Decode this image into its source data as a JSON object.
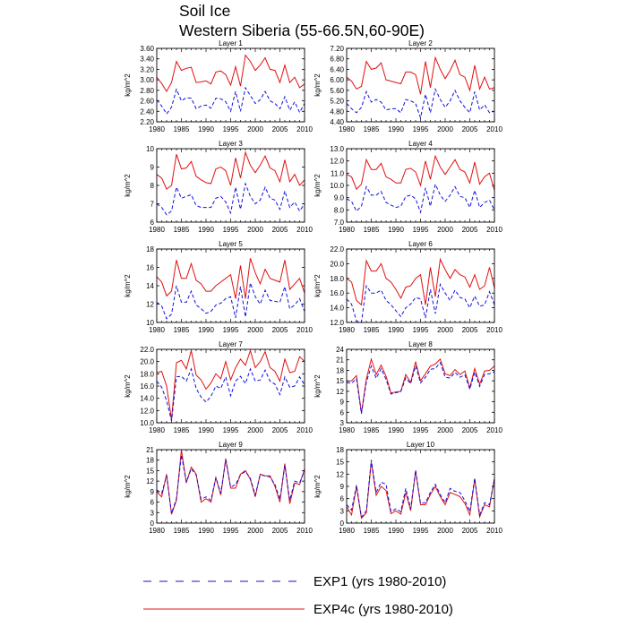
{
  "title_line1": "Soil Ice",
  "title_line2": "Western Siberia (55-66.5N,60-90E)",
  "chart_data": {
    "type": "line",
    "years": [
      1980,
      1981,
      1982,
      1983,
      1984,
      1985,
      1986,
      1987,
      1988,
      1989,
      1990,
      1991,
      1992,
      1993,
      1994,
      1995,
      1996,
      1997,
      1998,
      1999,
      2000,
      2001,
      2002,
      2003,
      2004,
      2005,
      2006,
      2007,
      2008,
      2009,
      2010
    ],
    "xlim": [
      1980,
      2010
    ],
    "xticks": [
      1980,
      1985,
      1990,
      1995,
      2000,
      2005,
      2010
    ],
    "ylabel": "kg/m^2",
    "colors": {
      "exp1": "#1010e0",
      "exp4c": "#e01010"
    },
    "legend": [
      {
        "key": "exp1",
        "label": "EXP1 (yrs 1980-2010)",
        "style": "dashed"
      },
      {
        "key": "exp4c",
        "label": "EXP4c (yrs 1980-2010)",
        "style": "solid"
      }
    ],
    "panels": [
      {
        "title": "Layer 1",
        "ylim": [
          2.2,
          3.6
        ],
        "yticks": [
          2.2,
          2.4,
          2.6,
          2.8,
          3.0,
          3.2,
          3.4,
          3.6
        ],
        "decimals": 2,
        "series": [
          {
            "name": "EXP4c",
            "values": [
              3.05,
              2.93,
              2.78,
              2.95,
              3.35,
              3.18,
              3.22,
              3.24,
              2.95,
              2.96,
              2.98,
              2.92,
              3.15,
              3.17,
              3.1,
              2.9,
              3.25,
              2.88,
              3.47,
              3.35,
              3.18,
              3.28,
              3.42,
              3.2,
              3.18,
              2.95,
              3.28,
              2.95,
              3.05,
              2.85,
              2.92
            ]
          },
          {
            "name": "EXP1",
            "values": [
              2.62,
              2.5,
              2.35,
              2.48,
              2.82,
              2.6,
              2.66,
              2.65,
              2.45,
              2.5,
              2.52,
              2.46,
              2.65,
              2.64,
              2.58,
              2.4,
              2.78,
              2.4,
              2.85,
              2.7,
              2.55,
              2.62,
              2.78,
              2.6,
              2.55,
              2.45,
              2.68,
              2.42,
              2.58,
              2.38,
              2.55
            ]
          }
        ]
      },
      {
        "title": "Layer 2",
        "ylim": [
          4.4,
          7.2
        ],
        "yticks": [
          4.4,
          4.8,
          5.2,
          5.6,
          6.0,
          6.4,
          6.8,
          7.2
        ],
        "decimals": 2,
        "series": [
          {
            "name": "EXP4c",
            "values": [
              6.1,
              5.95,
              5.65,
              5.75,
              6.7,
              6.4,
              6.45,
              6.65,
              6.0,
              5.95,
              5.9,
              5.85,
              6.3,
              6.3,
              6.2,
              5.45,
              6.7,
              5.7,
              6.85,
              6.4,
              6.05,
              6.35,
              6.75,
              6.2,
              6.1,
              5.6,
              6.55,
              5.65,
              6.1,
              5.65,
              5.7
            ]
          },
          {
            "name": "EXP1",
            "values": [
              5.1,
              4.9,
              4.75,
              4.95,
              5.55,
              5.15,
              5.25,
              5.15,
              4.85,
              4.9,
              4.9,
              4.75,
              5.25,
              5.2,
              5.1,
              4.55,
              5.45,
              4.75,
              5.65,
              5.25,
              4.95,
              5.2,
              5.6,
              5.2,
              4.95,
              4.75,
              5.55,
              4.85,
              5.05,
              4.75,
              4.8
            ]
          }
        ]
      },
      {
        "title": "Layer 3",
        "ylim": [
          6,
          10
        ],
        "yticks": [
          6,
          7,
          8,
          9,
          10
        ],
        "decimals": 0,
        "series": [
          {
            "name": "EXP4c",
            "values": [
              8.6,
              8.4,
              7.8,
              8.0,
              9.7,
              8.9,
              8.95,
              9.3,
              8.5,
              8.3,
              8.15,
              8.1,
              8.9,
              9.0,
              8.8,
              8.0,
              9.5,
              8.4,
              9.8,
              9.1,
              8.7,
              9.1,
              9.6,
              8.95,
              8.8,
              8.2,
              9.4,
              8.2,
              8.6,
              8.0,
              8.3
            ]
          },
          {
            "name": "EXP1",
            "values": [
              7.0,
              6.8,
              6.4,
              6.6,
              7.9,
              7.3,
              7.4,
              7.5,
              6.9,
              6.8,
              6.8,
              6.8,
              7.3,
              7.4,
              7.1,
              6.5,
              7.9,
              6.7,
              8.1,
              7.4,
              7.0,
              7.2,
              7.9,
              7.3,
              7.2,
              6.7,
              7.7,
              6.8,
              7.1,
              6.6,
              7.0
            ]
          }
        ]
      },
      {
        "title": "Layer 4",
        "ylim": [
          7,
          13
        ],
        "yticks": [
          7,
          8,
          9,
          10,
          11,
          12,
          13
        ],
        "decimals": 1,
        "series": [
          {
            "name": "EXP4c",
            "values": [
              10.9,
              10.7,
              9.7,
              10.1,
              12.1,
              11.3,
              11.3,
              11.8,
              10.7,
              10.5,
              10.2,
              10.2,
              11.3,
              11.4,
              11.1,
              10.0,
              12.0,
              10.5,
              12.4,
              11.5,
              10.9,
              11.5,
              12.1,
              11.3,
              11.1,
              10.2,
              11.9,
              10.1,
              10.7,
              11.0,
              9.6
            ]
          },
          {
            "name": "EXP1",
            "values": [
              8.9,
              8.7,
              7.9,
              8.3,
              9.9,
              9.2,
              9.2,
              9.5,
              8.6,
              8.4,
              8.2,
              8.3,
              9.1,
              9.2,
              8.9,
              7.8,
              9.8,
              8.3,
              10.1,
              9.2,
              8.7,
              9.2,
              9.9,
              9.1,
              9.0,
              8.2,
              9.6,
              8.2,
              8.6,
              8.8,
              8.0
            ]
          }
        ]
      },
      {
        "title": "Layer 5",
        "ylim": [
          10,
          18
        ],
        "yticks": [
          10,
          12,
          14,
          16,
          18
        ],
        "decimals": 0,
        "series": [
          {
            "name": "EXP4c",
            "values": [
              15.0,
              14.4,
              12.9,
              13.4,
              16.8,
              14.8,
              14.8,
              16.4,
              14.6,
              14.2,
              13.4,
              13.4,
              14.0,
              14.4,
              14.8,
              15.2,
              12.6,
              16.2,
              12.6,
              17.0,
              15.4,
              14.2,
              15.8,
              14.8,
              14.6,
              14.4,
              16.8,
              13.6,
              14.2,
              14.8,
              13.2
            ]
          },
          {
            "name": "EXP1",
            "values": [
              12.2,
              11.8,
              10.4,
              10.9,
              14.0,
              12.2,
              12.2,
              13.4,
              11.9,
              11.5,
              11.0,
              11.2,
              11.9,
              12.1,
              12.6,
              12.8,
              10.5,
              13.9,
              10.6,
              14.3,
              12.8,
              12.0,
              13.5,
              12.4,
              12.3,
              12.2,
              13.9,
              11.5,
              11.9,
              12.6,
              11.2
            ]
          }
        ]
      },
      {
        "title": "Layer 6",
        "ylim": [
          12,
          22
        ],
        "yticks": [
          12,
          14,
          16,
          18,
          20,
          22
        ],
        "decimals": 1,
        "series": [
          {
            "name": "EXP4c",
            "values": [
              18.0,
              17.5,
              15.0,
              14.4,
              20.4,
              19.0,
              19.0,
              20.0,
              18.0,
              17.5,
              16.5,
              15.3,
              16.8,
              17.0,
              18.0,
              18.5,
              14.4,
              19.5,
              15.5,
              20.6,
              19.2,
              18.0,
              19.2,
              18.5,
              18.2,
              16.8,
              18.5,
              16.5,
              17.0,
              19.5,
              16.7
            ]
          },
          {
            "name": "EXP1",
            "values": [
              15.2,
              14.5,
              12.2,
              12.0,
              17.0,
              16.0,
              16.0,
              16.4,
              15.0,
              14.4,
              13.6,
              12.8,
              14.0,
              14.5,
              15.4,
              15.2,
              12.6,
              16.5,
              13.2,
              17.2,
              16.0,
              15.0,
              16.4,
              15.4,
              15.2,
              14.0,
              15.6,
              14.2,
              14.4,
              16.2,
              14.4
            ]
          }
        ]
      },
      {
        "title": "Layer 7",
        "ylim": [
          10,
          22
        ],
        "yticks": [
          10,
          12,
          14,
          16,
          18,
          20,
          22
        ],
        "decimals": 1,
        "series": [
          {
            "name": "EXP4c",
            "values": [
              18.2,
              18.4,
              16.0,
              10.5,
              19.8,
              20.2,
              18.8,
              21.8,
              17.8,
              17.0,
              15.5,
              16.5,
              18.0,
              17.2,
              20.0,
              17.0,
              19.0,
              20.4,
              19.4,
              21.8,
              19.0,
              20.0,
              21.6,
              19.0,
              18.4,
              16.8,
              20.4,
              18.2,
              18.4,
              20.8,
              20.0
            ]
          },
          {
            "name": "EXP1",
            "values": [
              16.8,
              15.8,
              13.6,
              10.3,
              17.5,
              17.6,
              16.8,
              18.8,
              15.6,
              14.2,
              13.4,
              14.3,
              16.0,
              15.6,
              17.5,
              14.4,
              16.8,
              17.6,
              16.4,
              18.8,
              16.8,
              17.0,
              18.6,
              16.8,
              16.3,
              14.6,
              17.5,
              15.8,
              16.0,
              17.5,
              16.2
            ]
          }
        ]
      },
      {
        "title": "Layer 8",
        "ylim": [
          3,
          24
        ],
        "yticks": [
          3,
          6,
          9,
          12,
          15,
          18,
          21,
          24
        ],
        "decimals": 0,
        "series": [
          {
            "name": "EXP4c",
            "values": [
              14.8,
              15.0,
              16.5,
              5.8,
              15.5,
              21.2,
              16.8,
              19.5,
              16.3,
              11.5,
              11.8,
              12.0,
              16.8,
              14.5,
              20.5,
              15.0,
              17.0,
              19.2,
              19.8,
              21.2,
              17.0,
              16.5,
              18.2,
              16.8,
              17.8,
              13.0,
              18.5,
              14.0,
              17.8,
              18.0,
              19.2
            ]
          },
          {
            "name": "EXP1",
            "values": [
              14.5,
              14.3,
              15.6,
              5.6,
              14.6,
              19.2,
              15.7,
              18.5,
              15.4,
              11.2,
              11.6,
              11.9,
              15.8,
              14.2,
              19.3,
              14.4,
              16.0,
              18.3,
              18.5,
              20.2,
              16.0,
              15.8,
              17.4,
              16.0,
              16.7,
              12.6,
              17.5,
              13.4,
              16.8,
              17.0,
              17.6
            ]
          }
        ]
      },
      {
        "title": "Layer 9",
        "ylim": [
          0,
          21
        ],
        "yticks": [
          0,
          3,
          6,
          9,
          12,
          15,
          18,
          21
        ],
        "decimals": 0,
        "series": [
          {
            "name": "EXP4c",
            "values": [
              9.0,
              7.5,
              14.0,
              2.5,
              6.5,
              21.0,
              11.5,
              16.0,
              14.0,
              6.0,
              7.0,
              6.0,
              13.0,
              8.0,
              18.5,
              10.0,
              10.0,
              14.0,
              15.0,
              12.5,
              7.5,
              14.0,
              13.5,
              13.5,
              10.5,
              6.0,
              17.0,
              5.5,
              11.5,
              11.0,
              15.5
            ]
          },
          {
            "name": "EXP1",
            "values": [
              9.5,
              8.5,
              13.5,
              2.8,
              7.0,
              19.5,
              11.8,
              15.5,
              13.8,
              6.8,
              7.5,
              6.5,
              13.0,
              8.5,
              18.0,
              10.3,
              11.0,
              13.8,
              14.8,
              12.8,
              8.0,
              13.8,
              13.5,
              13.2,
              11.0,
              6.8,
              16.5,
              6.5,
              12.0,
              11.5,
              15.0
            ]
          }
        ]
      },
      {
        "title": "Layer 10",
        "ylim": [
          0,
          18
        ],
        "yticks": [
          0,
          3,
          6,
          9,
          12,
          15,
          18
        ],
        "decimals": 0,
        "series": [
          {
            "name": "EXP4c",
            "values": [
              4.0,
              2.0,
              9.0,
              1.2,
              2.5,
              15.0,
              6.8,
              9.0,
              8.0,
              2.3,
              3.0,
              2.2,
              7.5,
              3.0,
              12.8,
              4.5,
              4.5,
              7.0,
              9.0,
              6.5,
              4.5,
              7.5,
              7.0,
              6.5,
              4.8,
              2.0,
              10.8,
              1.5,
              4.5,
              4.0,
              11.0
            ]
          },
          {
            "name": "EXP1",
            "values": [
              4.5,
              3.2,
              9.3,
              1.5,
              3.0,
              15.5,
              7.5,
              10.0,
              9.5,
              2.8,
              3.5,
              2.8,
              8.5,
              3.5,
              13.0,
              4.8,
              5.0,
              7.5,
              9.5,
              7.0,
              5.0,
              8.5,
              7.8,
              7.5,
              5.5,
              2.8,
              11.0,
              2.0,
              5.0,
              4.5,
              10.8
            ]
          }
        ]
      }
    ]
  }
}
